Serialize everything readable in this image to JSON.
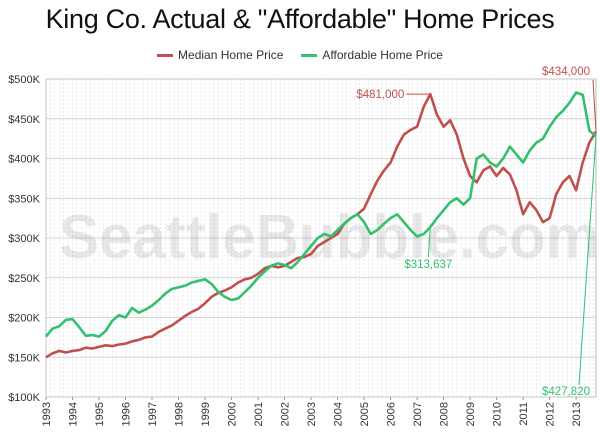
{
  "chart_data": {
    "type": "line",
    "title": "King Co. Actual & \"Affordable\" Home Prices",
    "watermark": "SeattleBubble.com",
    "xlabel": "",
    "ylabel": "",
    "xlim": [
      1993,
      2013.75
    ],
    "ylim": [
      100000,
      500000
    ],
    "x_ticks": [
      "1993",
      "1994",
      "1995",
      "1996",
      "1997",
      "1998",
      "1999",
      "2000",
      "2001",
      "2002",
      "2003",
      "2004",
      "2005",
      "2006",
      "2007",
      "2008",
      "2009",
      "2010",
      "2011",
      "2012",
      "2013"
    ],
    "y_ticks": [
      {
        "value": 100000,
        "label": "$100K"
      },
      {
        "value": 150000,
        "label": "$150K"
      },
      {
        "value": 200000,
        "label": "$200K"
      },
      {
        "value": 250000,
        "label": "$250K"
      },
      {
        "value": 300000,
        "label": "$300K"
      },
      {
        "value": 350000,
        "label": "$350K"
      },
      {
        "value": 400000,
        "label": "$400K"
      },
      {
        "value": 450000,
        "label": "$450K"
      },
      {
        "value": 500000,
        "label": "$500K"
      }
    ],
    "grid": true,
    "legend_placement": "top",
    "series": [
      {
        "name": "Median Home Price",
        "color": "#c0504d",
        "points": [
          [
            1993.0,
            150000
          ],
          [
            1993.25,
            155000
          ],
          [
            1993.5,
            158000
          ],
          [
            1993.75,
            156000
          ],
          [
            1994.0,
            158000
          ],
          [
            1994.25,
            159000
          ],
          [
            1994.5,
            162000
          ],
          [
            1994.75,
            161000
          ],
          [
            1995.0,
            163000
          ],
          [
            1995.25,
            165000
          ],
          [
            1995.5,
            164000
          ],
          [
            1995.75,
            166000
          ],
          [
            1996.0,
            167000
          ],
          [
            1996.25,
            170000
          ],
          [
            1996.5,
            172000
          ],
          [
            1996.75,
            175000
          ],
          [
            1997.0,
            176000
          ],
          [
            1997.25,
            182000
          ],
          [
            1997.5,
            186000
          ],
          [
            1997.75,
            190000
          ],
          [
            1998.0,
            196000
          ],
          [
            1998.25,
            202000
          ],
          [
            1998.5,
            207000
          ],
          [
            1998.75,
            211000
          ],
          [
            1999.0,
            218000
          ],
          [
            1999.25,
            226000
          ],
          [
            1999.5,
            231000
          ],
          [
            1999.75,
            234000
          ],
          [
            2000.0,
            238000
          ],
          [
            2000.25,
            244000
          ],
          [
            2000.5,
            248000
          ],
          [
            2000.75,
            250000
          ],
          [
            2001.0,
            255000
          ],
          [
            2001.25,
            262000
          ],
          [
            2001.5,
            265000
          ],
          [
            2001.75,
            263000
          ],
          [
            2002.0,
            265000
          ],
          [
            2002.25,
            270000
          ],
          [
            2002.5,
            275000
          ],
          [
            2002.75,
            276000
          ],
          [
            2003.0,
            280000
          ],
          [
            2003.25,
            290000
          ],
          [
            2003.5,
            295000
          ],
          [
            2003.75,
            300000
          ],
          [
            2004.0,
            305000
          ],
          [
            2004.25,
            318000
          ],
          [
            2004.5,
            325000
          ],
          [
            2004.75,
            330000
          ],
          [
            2005.0,
            337000
          ],
          [
            2005.25,
            355000
          ],
          [
            2005.5,
            372000
          ],
          [
            2005.75,
            385000
          ],
          [
            2006.0,
            395000
          ],
          [
            2006.25,
            415000
          ],
          [
            2006.5,
            430000
          ],
          [
            2006.75,
            436000
          ],
          [
            2007.0,
            440000
          ],
          [
            2007.25,
            465000
          ],
          [
            2007.5,
            481000
          ],
          [
            2007.75,
            455000
          ],
          [
            2008.0,
            440000
          ],
          [
            2008.25,
            448000
          ],
          [
            2008.5,
            430000
          ],
          [
            2008.75,
            400000
          ],
          [
            2009.0,
            378000
          ],
          [
            2009.25,
            370000
          ],
          [
            2009.5,
            385000
          ],
          [
            2009.75,
            390000
          ],
          [
            2010.0,
            378000
          ],
          [
            2010.25,
            388000
          ],
          [
            2010.5,
            380000
          ],
          [
            2010.75,
            360000
          ],
          [
            2011.0,
            330000
          ],
          [
            2011.25,
            345000
          ],
          [
            2011.5,
            335000
          ],
          [
            2011.75,
            320000
          ],
          [
            2012.0,
            325000
          ],
          [
            2012.25,
            355000
          ],
          [
            2012.5,
            370000
          ],
          [
            2012.75,
            378000
          ],
          [
            2013.0,
            360000
          ],
          [
            2013.25,
            395000
          ],
          [
            2013.5,
            420000
          ],
          [
            2013.75,
            434000
          ]
        ]
      },
      {
        "name": "Affordable Home Price",
        "color": "#33c06e",
        "points": [
          [
            1993.0,
            176000
          ],
          [
            1993.25,
            186000
          ],
          [
            1993.5,
            189000
          ],
          [
            1993.75,
            197000
          ],
          [
            1994.0,
            198000
          ],
          [
            1994.25,
            188000
          ],
          [
            1994.5,
            177000
          ],
          [
            1994.75,
            178000
          ],
          [
            1995.0,
            176000
          ],
          [
            1995.25,
            183000
          ],
          [
            1995.5,
            196000
          ],
          [
            1995.75,
            203000
          ],
          [
            1996.0,
            200000
          ],
          [
            1996.25,
            212000
          ],
          [
            1996.5,
            206000
          ],
          [
            1996.75,
            210000
          ],
          [
            1997.0,
            215000
          ],
          [
            1997.25,
            222000
          ],
          [
            1997.5,
            230000
          ],
          [
            1997.75,
            236000
          ],
          [
            1998.0,
            238000
          ],
          [
            1998.25,
            240000
          ],
          [
            1998.5,
            244000
          ],
          [
            1998.75,
            246000
          ],
          [
            1999.0,
            248000
          ],
          [
            1999.25,
            242000
          ],
          [
            1999.5,
            232000
          ],
          [
            1999.75,
            226000
          ],
          [
            2000.0,
            222000
          ],
          [
            2000.25,
            224000
          ],
          [
            2000.5,
            232000
          ],
          [
            2000.75,
            240000
          ],
          [
            2001.0,
            250000
          ],
          [
            2001.25,
            258000
          ],
          [
            2001.5,
            265000
          ],
          [
            2001.75,
            268000
          ],
          [
            2002.0,
            266000
          ],
          [
            2002.25,
            262000
          ],
          [
            2002.5,
            270000
          ],
          [
            2002.75,
            280000
          ],
          [
            2003.0,
            290000
          ],
          [
            2003.25,
            300000
          ],
          [
            2003.5,
            305000
          ],
          [
            2003.75,
            302000
          ],
          [
            2004.0,
            310000
          ],
          [
            2004.25,
            318000
          ],
          [
            2004.5,
            325000
          ],
          [
            2004.75,
            330000
          ],
          [
            2005.0,
            320000
          ],
          [
            2005.25,
            305000
          ],
          [
            2005.5,
            310000
          ],
          [
            2005.75,
            318000
          ],
          [
            2006.0,
            325000
          ],
          [
            2006.25,
            330000
          ],
          [
            2006.5,
            320000
          ],
          [
            2006.75,
            310000
          ],
          [
            2007.0,
            302000
          ],
          [
            2007.25,
            305000
          ],
          [
            2007.5,
            313637
          ],
          [
            2007.75,
            325000
          ],
          [
            2008.0,
            335000
          ],
          [
            2008.25,
            345000
          ],
          [
            2008.5,
            350000
          ],
          [
            2008.75,
            342000
          ],
          [
            2009.0,
            350000
          ],
          [
            2009.25,
            400000
          ],
          [
            2009.5,
            405000
          ],
          [
            2009.75,
            395000
          ],
          [
            2010.0,
            390000
          ],
          [
            2010.25,
            400000
          ],
          [
            2010.5,
            415000
          ],
          [
            2010.75,
            405000
          ],
          [
            2011.0,
            395000
          ],
          [
            2011.25,
            410000
          ],
          [
            2011.5,
            420000
          ],
          [
            2011.75,
            425000
          ],
          [
            2012.0,
            440000
          ],
          [
            2012.25,
            452000
          ],
          [
            2012.5,
            460000
          ],
          [
            2012.75,
            470000
          ],
          [
            2013.0,
            483000
          ],
          [
            2013.25,
            480000
          ],
          [
            2013.5,
            435000
          ],
          [
            2013.75,
            427820
          ]
        ]
      }
    ],
    "annotations": [
      {
        "text": "$481,000",
        "x": 2007.5,
        "y": 481000,
        "color": "#c0504d",
        "side": "left"
      },
      {
        "text": "$434,000",
        "x": 2013.75,
        "y": 434000,
        "color": "#c0504d",
        "side": "top"
      },
      {
        "text": "$313,637",
        "x": 2007.5,
        "y": 313637,
        "color": "#33c06e",
        "side": "below"
      },
      {
        "text": "$427,820",
        "x": 2013.75,
        "y": 427820,
        "color": "#33c06e",
        "side": "bottom"
      }
    ]
  }
}
